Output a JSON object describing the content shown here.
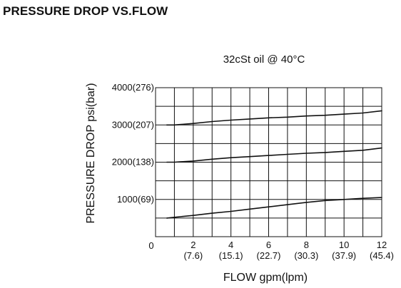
{
  "page": {
    "title": "PRESSURE DROP VS.FLOW"
  },
  "chart_data": {
    "type": "line",
    "title": "32cSt oil @ 40°C",
    "xlabel": "FLOW gpm(lpm)",
    "ylabel": "PRESSURE DROP psi(bar)",
    "xlim": [
      0,
      12
    ],
    "ylim": [
      0,
      4000
    ],
    "grid": true,
    "x_ticks": [
      {
        "value": 0,
        "label": "0",
        "sublabel": ""
      },
      {
        "value": 2,
        "label": "2",
        "sublabel": "(7.6)"
      },
      {
        "value": 4,
        "label": "4",
        "sublabel": "(15.1)"
      },
      {
        "value": 6,
        "label": "6",
        "sublabel": "(22.7)"
      },
      {
        "value": 8,
        "label": "8",
        "sublabel": "(30.3)"
      },
      {
        "value": 10,
        "label": "10",
        "sublabel": "(37.9)"
      },
      {
        "value": 12,
        "label": "12",
        "sublabel": "(45.4)"
      }
    ],
    "y_ticks": [
      {
        "value": 1000,
        "label": "1000(69)"
      },
      {
        "value": 2000,
        "label": "2000(138)"
      },
      {
        "value": 3000,
        "label": "3000(207)"
      },
      {
        "value": 4000,
        "label": "4000(276)"
      }
    ],
    "series": [
      {
        "x": [
          0.6,
          1,
          2,
          3,
          4,
          5,
          6,
          7,
          8,
          9,
          10,
          11,
          12
        ],
        "y": [
          500,
          520,
          570,
          630,
          680,
          740,
          800,
          860,
          920,
          970,
          1000,
          1030,
          1050
        ]
      },
      {
        "x": [
          0.6,
          1,
          2,
          3,
          4,
          5,
          6,
          7,
          8,
          9,
          10,
          11,
          12
        ],
        "y": [
          2000,
          2000,
          2030,
          2080,
          2120,
          2150,
          2180,
          2210,
          2240,
          2260,
          2290,
          2320,
          2380
        ]
      },
      {
        "x": [
          0.6,
          1,
          2,
          3,
          4,
          5,
          6,
          7,
          8,
          9,
          10,
          11,
          12
        ],
        "y": [
          3000,
          3000,
          3040,
          3090,
          3130,
          3160,
          3190,
          3210,
          3240,
          3260,
          3290,
          3320,
          3380
        ]
      }
    ]
  }
}
